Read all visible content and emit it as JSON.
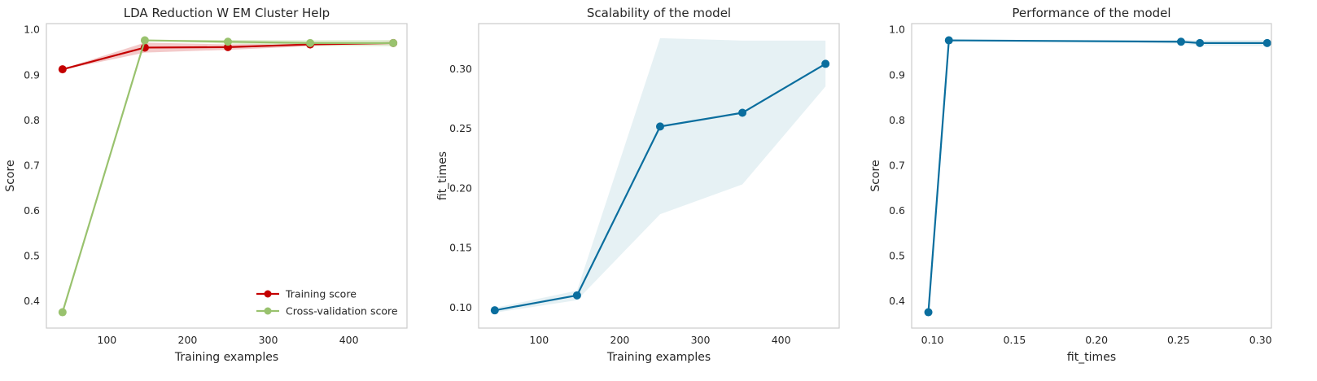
{
  "chart_data": [
    {
      "type": "line",
      "title": "LDA Reduction W EM Cluster Help",
      "xlabel": "Training examples",
      "ylabel": "Score",
      "xlim": [
        25,
        472
      ],
      "ylim": [
        0.34,
        1.013
      ],
      "xticks": [
        100,
        200,
        300,
        400
      ],
      "yticks": [
        0.4,
        0.5,
        0.6,
        0.7,
        0.8,
        0.9,
        1.0
      ],
      "grid": false,
      "legend": "bottom-right",
      "x": [
        45,
        147,
        250,
        352,
        455
      ],
      "series": [
        {
          "name": "Training score",
          "color": "#c40000",
          "values": [
            0.912,
            0.96,
            0.961,
            0.967,
            0.97
          ],
          "band_low": [
            0.911,
            0.949,
            0.955,
            0.963,
            0.966
          ],
          "band_high": [
            0.913,
            0.971,
            0.967,
            0.971,
            0.974
          ],
          "band_color": "#f2c4c4"
        },
        {
          "name": "Cross-validation score",
          "color": "#99c26e",
          "values": [
            0.375,
            0.976,
            0.973,
            0.97,
            0.97
          ],
          "band_low": [
            0.374,
            0.975,
            0.969,
            0.964,
            0.963
          ],
          "band_high": [
            0.376,
            0.977,
            0.977,
            0.976,
            0.977
          ],
          "band_color": "#dfeccf"
        }
      ]
    },
    {
      "type": "line",
      "title": "Scalability of the model",
      "xlabel": "Training examples",
      "ylabel": "fit_times",
      "xlim": [
        25,
        472
      ],
      "ylim": [
        0.0826,
        0.3377
      ],
      "xticks": [
        100,
        200,
        300,
        400
      ],
      "yticks": [
        0.1,
        0.15,
        0.2,
        0.25,
        0.3
      ],
      "yticklabels": [
        "0.10",
        "0.15",
        "0.20",
        "0.25",
        "0.30"
      ],
      "grid": false,
      "x": [
        45,
        147,
        250,
        352,
        455
      ],
      "series": [
        {
          "color": "#0a6e9e",
          "values": [
            0.0975,
            0.11,
            0.2515,
            0.263,
            0.304
          ],
          "band_low": [
            0.0955,
            0.106,
            0.178,
            0.203,
            0.285
          ],
          "band_high": [
            0.0995,
            0.114,
            0.3255,
            0.3235,
            0.3235
          ],
          "band_color": "#e3eff3"
        }
      ]
    },
    {
      "type": "line",
      "title": "Performance of the model",
      "xlabel": "fit_times",
      "ylabel": "Score",
      "xlim": [
        0.0873,
        0.3066
      ],
      "ylim": [
        0.34,
        1.013
      ],
      "xticks": [
        0.1,
        0.15,
        0.2,
        0.25,
        0.3
      ],
      "xticklabels": [
        "0.10",
        "0.15",
        "0.20",
        "0.25",
        "0.30"
      ],
      "yticks": [
        0.4,
        0.5,
        0.6,
        0.7,
        0.8,
        0.9,
        1.0
      ],
      "grid": false,
      "series": [
        {
          "color": "#0a6e9e",
          "x": [
            0.0975,
            0.11,
            0.2515,
            0.263,
            0.304
          ],
          "values": [
            0.375,
            0.976,
            0.973,
            0.97,
            0.97
          ],
          "band_low": [
            0.374,
            0.975,
            0.969,
            0.964,
            0.963
          ],
          "band_high": [
            0.376,
            0.977,
            0.977,
            0.976,
            0.977
          ],
          "band_color": "#e3eff3"
        }
      ]
    }
  ]
}
